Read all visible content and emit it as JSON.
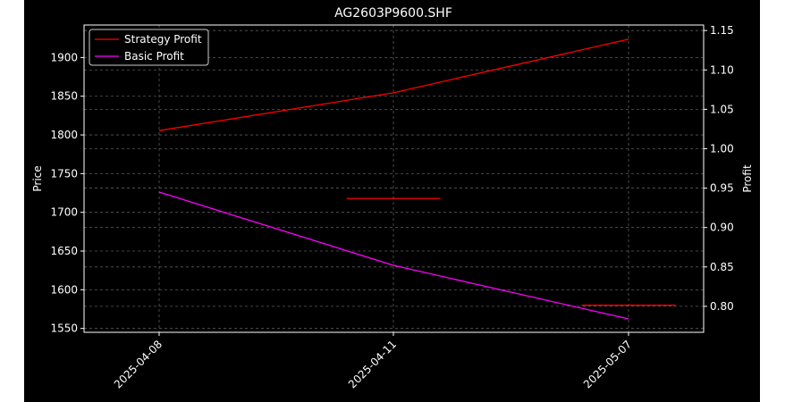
{
  "chart_data": {
    "type": "line",
    "title": "AG2603P9600.SHF",
    "ylabel_left": "Price",
    "ylabel_right": "Profit",
    "categories": [
      "2025-04-08",
      "2025-04-11",
      "2025-05-07"
    ],
    "y_left_ticks": [
      1550,
      1600,
      1650,
      1700,
      1750,
      1800,
      1850,
      1900
    ],
    "y_left_ticks_text": [
      "1550",
      "1600",
      "1650",
      "1700",
      "1750",
      "1800",
      "1850",
      "1900"
    ],
    "ylim_left": [
      1545,
      1942
    ],
    "y_right_ticks": [
      0.8,
      0.85,
      0.9,
      0.95,
      1.0,
      1.05,
      1.1,
      1.15
    ],
    "y_right_ticks_text": [
      "0.80",
      "0.85",
      "0.90",
      "0.95",
      "1.00",
      "1.05",
      "1.10",
      "1.15"
    ],
    "ylim_right": [
      0.767,
      1.157
    ],
    "grid": true,
    "legend_position": "top-left",
    "series": [
      {
        "name": "Strategy Profit",
        "color": "#ff0000",
        "axis": "right",
        "values": [
          1.023,
          1.071,
          1.139
        ]
      },
      {
        "name": "Basic Profit",
        "color": "#ff00ff",
        "axis": "right",
        "values": [
          0.945,
          0.852,
          0.784
        ]
      }
    ],
    "reference_segments": [
      {
        "color": "#ff0000",
        "axis": "left",
        "x_start": 0.8,
        "x_end": 1.2,
        "value": 1718
      },
      {
        "color": "#ff0000",
        "axis": "left",
        "x_start": 1.8,
        "x_end": 2.2,
        "value": 1580
      }
    ],
    "colors": {
      "background": "#000000",
      "outer": "#ffffff",
      "text": "#ffffff",
      "grid": "#5a5a5a"
    }
  }
}
